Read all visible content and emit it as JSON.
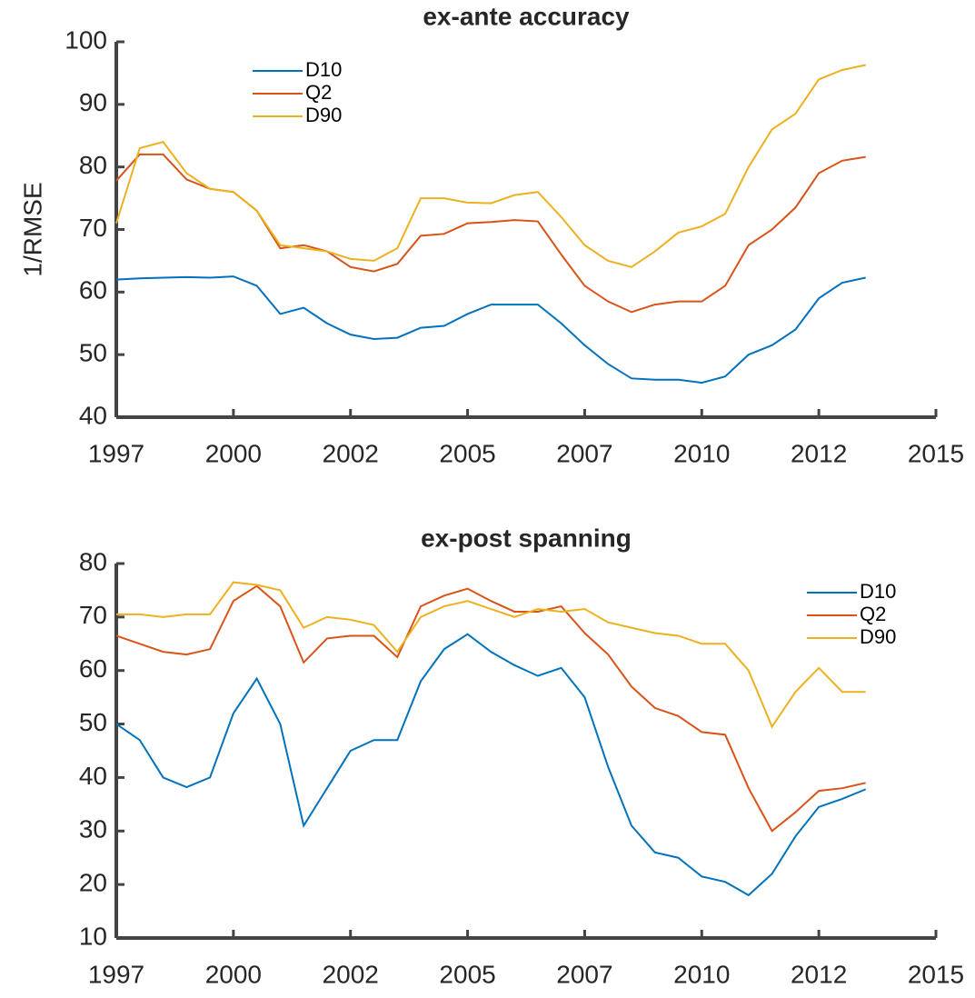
{
  "chart_data": [
    {
      "type": "line",
      "title": "ex-ante accuracy",
      "y_label": "1/RMSE",
      "x": [
        1997.5,
        1998,
        1998.5,
        1999,
        1999.5,
        2000,
        2000.5,
        2001,
        2001.5,
        2002,
        2002.5,
        2003,
        2003.5,
        2004,
        2004.5,
        2005,
        2005.5,
        2006,
        2006.5,
        2007,
        2007.5,
        2008,
        2008.5,
        2009,
        2009.5,
        2010,
        2010.5,
        2011,
        2011.5,
        2012,
        2012.5,
        2013,
        2013.5
      ],
      "series": [
        {
          "name": "D10",
          "color": "#0072bd",
          "values": [
            62,
            62.2,
            62.3,
            62.4,
            62.3,
            62.5,
            61,
            56.5,
            57.5,
            55,
            53.2,
            52.5,
            52.7,
            54.3,
            54.6,
            56.5,
            58,
            58,
            58,
            55,
            51.5,
            48.5,
            46.2,
            46,
            46,
            45.5,
            46.5,
            50,
            51.5,
            54,
            59,
            61.5,
            62.3
          ]
        },
        {
          "name": "Q2",
          "color": "#d95319",
          "values": [
            77.8,
            82,
            82,
            78,
            76.5,
            76,
            73,
            67,
            67.5,
            66.5,
            64,
            63.3,
            64.5,
            69,
            69.3,
            71,
            71.2,
            71.5,
            71.3,
            66,
            61,
            58.5,
            56.8,
            58,
            58.5,
            58.5,
            61,
            67.5,
            70,
            73.5,
            79,
            81,
            81.6
          ]
        },
        {
          "name": "D90",
          "color": "#edb120",
          "values": [
            71,
            83,
            84,
            79,
            76.5,
            76,
            73,
            67.5,
            67,
            66.5,
            65.3,
            65,
            67,
            75,
            75,
            74.3,
            74.2,
            75.5,
            76,
            72,
            67.5,
            65,
            64,
            66.5,
            69.5,
            70.5,
            72.5,
            80,
            86,
            88.5,
            94,
            95.5,
            96.3
          ]
        }
      ],
      "xlim": [
        1997.5,
        2015
      ],
      "xticks": [
        {
          "value": 1997.5,
          "label": "1997"
        },
        2000,
        {
          "value": 2002.5,
          "label": "2002"
        },
        2005,
        {
          "value": 2007.5,
          "label": "2007"
        },
        2010,
        {
          "value": 2012.5,
          "label": "2012"
        },
        2015
      ],
      "ylim": [
        40,
        100
      ],
      "yticks": [
        40,
        50,
        60,
        70,
        80,
        90,
        100
      ],
      "grid": false,
      "legend": "upper left"
    },
    {
      "type": "line",
      "title": "ex-post spanning",
      "x": [
        1997.5,
        1998,
        1998.5,
        1999,
        1999.5,
        2000,
        2000.5,
        2001,
        2001.5,
        2002,
        2002.5,
        2003,
        2003.5,
        2004,
        2004.5,
        2005,
        2005.5,
        2006,
        2006.5,
        2007,
        2007.5,
        2008,
        2008.5,
        2009,
        2009.5,
        2010,
        2010.5,
        2011,
        2011.5,
        2012,
        2012.5,
        2013,
        2013.5
      ],
      "series": [
        {
          "name": "D10",
          "color": "#0072bd",
          "values": [
            50,
            47,
            40,
            38.2,
            40,
            52,
            58.5,
            50,
            31,
            38,
            45,
            47,
            47,
            58,
            64,
            66.8,
            63.5,
            61,
            59,
            60.5,
            55,
            42,
            31,
            26,
            25,
            21.5,
            20.5,
            18,
            22,
            29,
            34.5,
            36,
            37.8
          ]
        },
        {
          "name": "Q2",
          "color": "#d95319",
          "values": [
            66.5,
            65,
            63.5,
            63,
            64,
            73,
            75.8,
            72,
            61.5,
            66,
            66.5,
            66.5,
            62.5,
            72,
            74,
            75.3,
            73,
            71,
            71,
            72,
            67,
            63,
            57,
            53,
            51.5,
            48.5,
            48,
            38,
            30,
            33.5,
            37.5,
            38,
            39
          ]
        },
        {
          "name": "D90",
          "color": "#edb120",
          "values": [
            70.5,
            70.5,
            70,
            70.5,
            70.5,
            76.5,
            76,
            75,
            68,
            70,
            69.5,
            68.5,
            63.5,
            70,
            72,
            73,
            71.5,
            70,
            71.5,
            71,
            71.5,
            69,
            68,
            67,
            66.5,
            65,
            65,
            60,
            49.5,
            56,
            60.5,
            56,
            56
          ]
        }
      ],
      "xlim": [
        1997.5,
        2015
      ],
      "xticks": [
        {
          "value": 1997.5,
          "label": "1997"
        },
        2000,
        {
          "value": 2002.5,
          "label": "2002"
        },
        2005,
        {
          "value": 2007.5,
          "label": "2007"
        },
        2010,
        {
          "value": 2012.5,
          "label": "2012"
        },
        2015
      ],
      "ylim": [
        10,
        80
      ],
      "yticks": [
        10,
        20,
        30,
        40,
        50,
        60,
        70,
        80
      ],
      "grid": false,
      "legend": "upper right"
    }
  ]
}
